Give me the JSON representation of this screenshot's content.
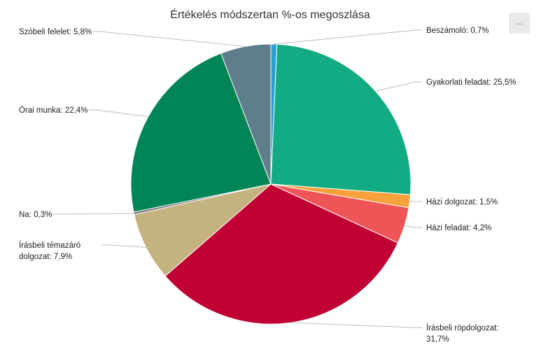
{
  "chart_data": {
    "type": "pie",
    "title": "Értékelés módszertan %-os megoszlása",
    "start_angle_deg": 0,
    "direction": "clockwise",
    "slices": [
      {
        "label": "Beszámoló: 0,7%",
        "value": 0.7,
        "color": "#2a9fd6",
        "side": "right"
      },
      {
        "label": "Gyakorlati feladat: 25,5%",
        "value": 25.5,
        "color": "#13ab84",
        "side": "right"
      },
      {
        "label": "Házi dolgozat: 1,5%",
        "value": 1.5,
        "color": "#f9a13a",
        "side": "right"
      },
      {
        "label": "Házi feladat: 4,2%",
        "value": 4.2,
        "color": "#ef5456",
        "side": "right"
      },
      {
        "label": "Írásbeli röpdolgozat: 31,7%",
        "value": 31.7,
        "color": "#c00033",
        "side": "right"
      },
      {
        "label": "Írásbeli témazáró dolgozat: 7,9%",
        "value": 7.9,
        "color": "#c4b37f",
        "side": "left"
      },
      {
        "label": "Na: 0,3%",
        "value": 0.3,
        "color": "#7c7c7c",
        "side": "left"
      },
      {
        "label": "Órai munka: 22,4%",
        "value": 22.4,
        "color": "#008556",
        "side": "left"
      },
      {
        "label": "Szóbeli felelet: 5,8%",
        "value": 5.8,
        "color": "#607d8b",
        "side": "left"
      }
    ]
  },
  "menu": {
    "label": "..."
  }
}
